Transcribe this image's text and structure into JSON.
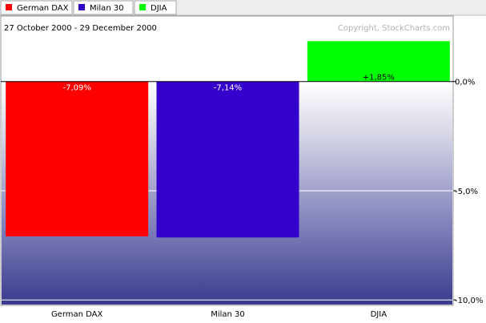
{
  "chart_data": {
    "type": "bar",
    "date_range": "27 October 2000 - 29 December 2000",
    "copyright": "Copyright, StockCharts.com",
    "categories": [
      "German DAX",
      "Milan 30",
      "DJIA"
    ],
    "values": [
      -7.09,
      -7.14,
      1.85
    ],
    "value_labels": [
      "-7,09%",
      "-7,14%",
      "+1,85%"
    ],
    "colors": [
      "#ff0000",
      "#3300cc",
      "#00ff00"
    ],
    "y_ticks": [
      {
        "value": 0,
        "label": "0,0%"
      },
      {
        "value": -5,
        "label": "-5,0%"
      },
      {
        "value": -10,
        "label": "-10,0%"
      }
    ],
    "ylim": [
      -10.25,
      3.0
    ],
    "legend": [
      {
        "label": "German DAX",
        "color": "#ff0000"
      },
      {
        "label": "Milan 30",
        "color": "#3300cc"
      },
      {
        "label": "DJIA",
        "color": "#00ff00"
      }
    ],
    "legend_position": "top-left",
    "grid": true
  }
}
